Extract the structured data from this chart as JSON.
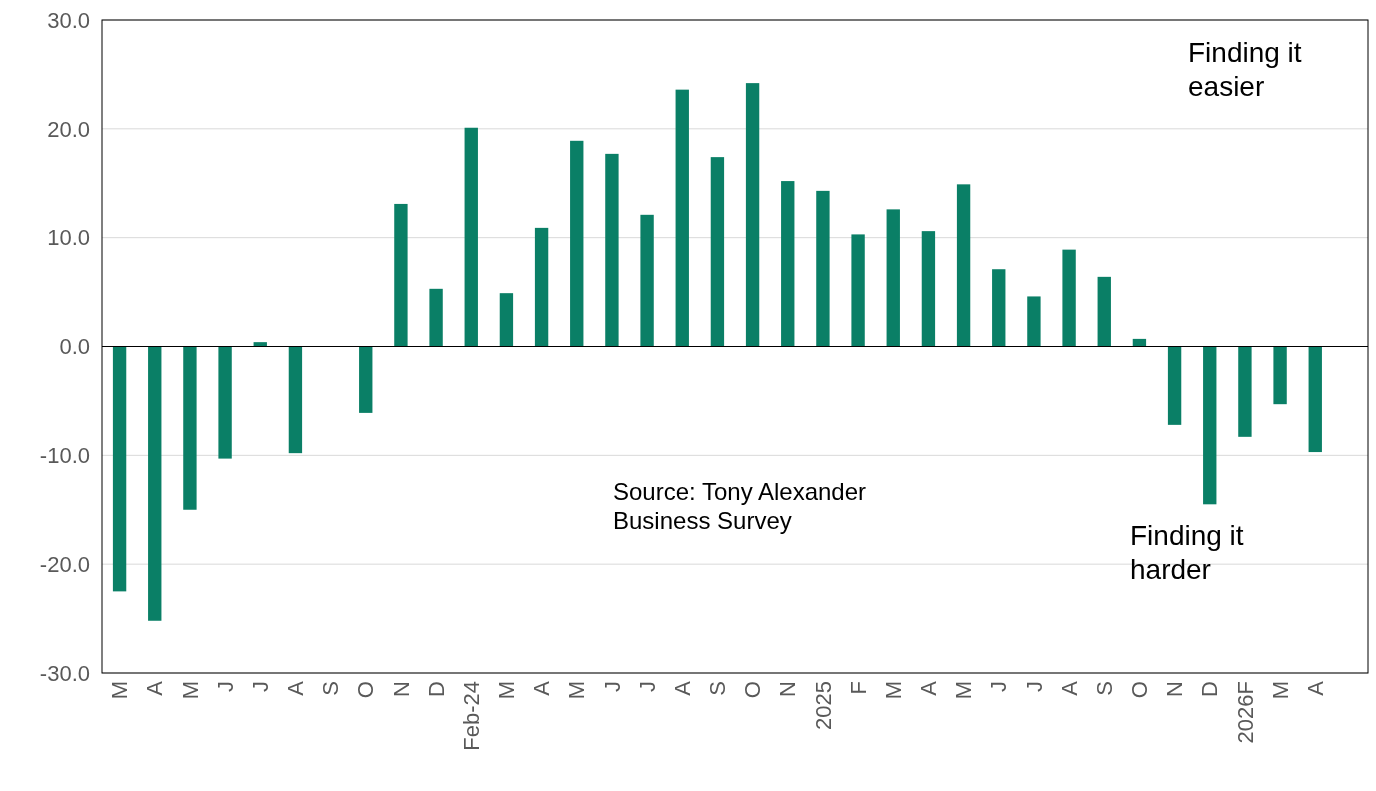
{
  "chart_data": {
    "type": "bar",
    "categories": [
      "M",
      "A",
      "M",
      "J",
      "J",
      "A",
      "S",
      "O",
      "N",
      "D",
      "Feb-24",
      "M",
      "A",
      "M",
      "J",
      "J",
      "A",
      "S",
      "O",
      "N",
      "2025",
      "F",
      "M",
      "A",
      "M",
      "J",
      "J",
      "A",
      "S",
      "O",
      "N",
      "D",
      "2026F",
      "M",
      "A",
      null
    ],
    "values": [
      -22.5,
      -25.2,
      -15.0,
      -10.3,
      0.4,
      -9.8,
      null,
      -6.1,
      13.1,
      5.3,
      20.1,
      4.9,
      10.9,
      18.9,
      17.7,
      12.1,
      23.6,
      17.4,
      24.2,
      15.2,
      14.3,
      10.3,
      12.6,
      10.6,
      14.9,
      7.1,
      4.6,
      8.9,
      6.4,
      0.7,
      -7.2,
      -14.5,
      -8.3,
      -5.3,
      -9.7,
      null
    ],
    "color": "#0a7f66",
    "ylim": [
      -30,
      30
    ],
    "yticks": [
      {
        "value": -30,
        "label": "-30.0"
      },
      {
        "value": -20,
        "label": "-20.0"
      },
      {
        "value": -10,
        "label": "-10.0"
      },
      {
        "value": 0,
        "label": "0.0"
      },
      {
        "value": 10,
        "label": "10.0"
      },
      {
        "value": 20,
        "label": "20.0"
      },
      {
        "value": 30,
        "label": "30.0"
      }
    ],
    "grid": "y",
    "annotations": [
      "Finding it easier",
      "Finding it harder",
      "Source: Tony Alexander Business Survey"
    ]
  }
}
